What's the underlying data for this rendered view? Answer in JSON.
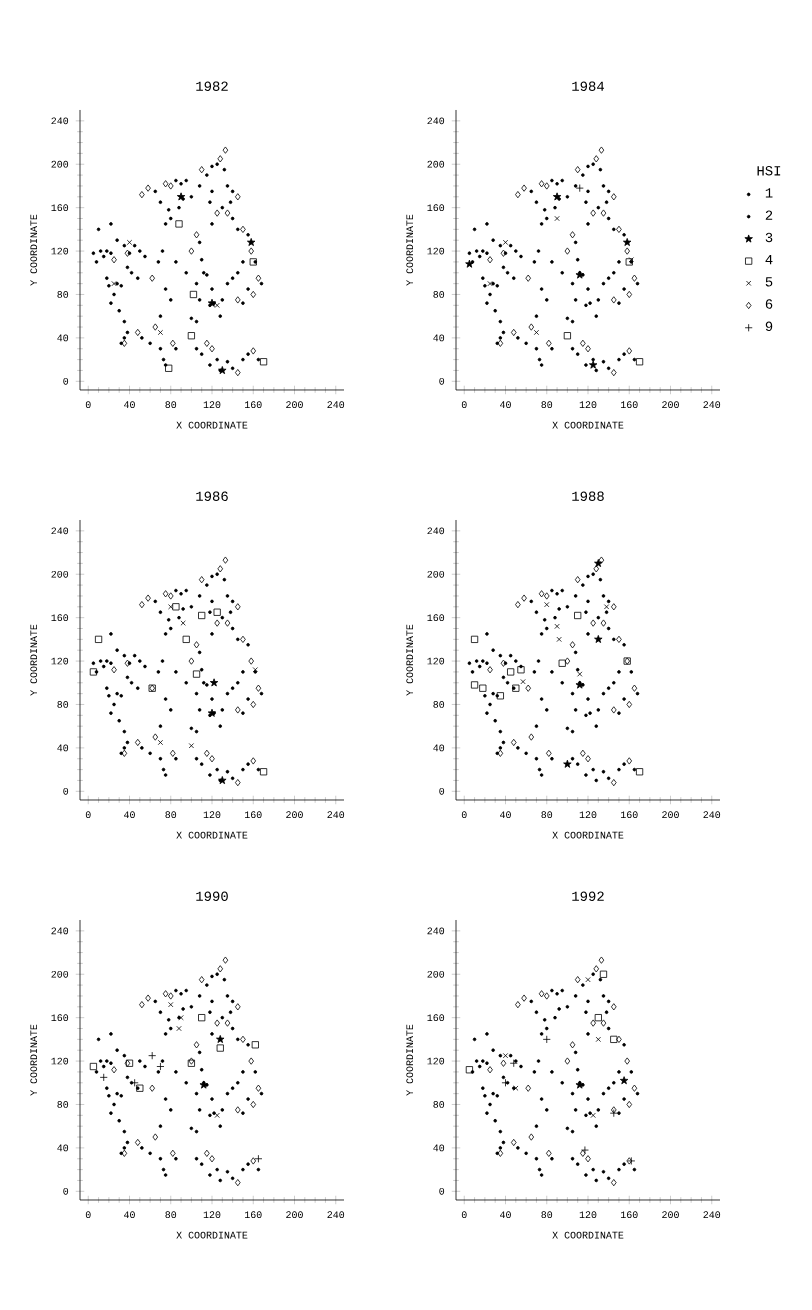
{
  "chart_data": [
    {
      "type": "scatter",
      "title": "1982",
      "xlabel": "X COORDINATE",
      "ylabel": "Y COORDINATE",
      "xlim": [
        -8,
        248
      ],
      "ylim": [
        -8,
        250
      ],
      "xticks": [
        0,
        40,
        80,
        120,
        160,
        200,
        240
      ],
      "yticks": [
        0,
        40,
        80,
        120,
        160,
        200,
        240
      ],
      "series": [
        {
          "color": "#000000",
          "marker": "circle",
          "x": [
            5,
            8,
            12,
            15,
            18,
            22,
            28,
            35,
            40,
            42,
            38,
            18,
            20,
            25,
            22,
            38,
            32,
            35,
            28,
            32,
            45,
            50,
            55,
            48,
            60,
            70,
            75,
            73,
            85,
            75,
            80,
            68,
            72,
            85,
            65,
            70,
            90,
            95,
            78,
            80,
            75,
            88,
            92,
            100,
            108,
            110,
            112,
            115,
            105,
            100,
            105,
            118,
            122,
            128,
            130,
            120,
            108,
            115,
            120,
            125,
            132,
            135,
            130,
            140,
            120,
            138,
            120,
            155,
            162,
            155,
            145,
            150,
            140,
            135,
            150,
            110,
            125,
            135,
            140,
            150,
            165,
            118,
            128
          ],
          "values": [
            118,
            110,
            120,
            115,
            120,
            118,
            130,
            125,
            118,
            100,
            105,
            95,
            88,
            80,
            72,
            45,
            35,
            40,
            90,
            88,
            125,
            120,
            115,
            95,
            35,
            30,
            15,
            20,
            30,
            85,
            75,
            110,
            120,
            110,
            175,
            165,
            182,
            185,
            158,
            150,
            145,
            160,
            168,
            170,
            128,
            112,
            100,
            98,
            90,
            58,
            55,
            70,
            72,
            60,
            75,
            85,
            180,
            190,
            198,
            200,
            195,
            180,
            160,
            150,
            145,
            165,
            175,
            135,
            110,
            85,
            100,
            110,
            95,
            90,
            72,
            25,
            20,
            18,
            12,
            20,
            20,
            15,
            10
          ]
        },
        {
          "color": "#000000",
          "marker": "circle",
          "x": [
            10,
            22,
            30,
            52,
            70,
            85,
            95,
            108,
            140,
            145,
            168,
            105,
            155,
            118,
            35
          ],
          "values": [
            140,
            145,
            65,
            40,
            60,
            185,
            100,
            75,
            175,
            140,
            90,
            30,
            25,
            165,
            55
          ]
        },
        {
          "color": "#000000",
          "marker": "star",
          "x": [
            90,
            158,
            130,
            120
          ],
          "values": [
            170,
            128,
            10,
            72
          ]
        },
        {
          "color": "#000000",
          "marker": "square",
          "x": [
            100,
            78,
            170,
            102,
            160,
            88
          ],
          "values": [
            42,
            12,
            18,
            80,
            110,
            145
          ]
        },
        {
          "color": "#000000",
          "marker": "cross",
          "x": [
            40,
            25,
            70,
            125
          ],
          "values": [
            128,
            90,
            45,
            70
          ]
        },
        {
          "color": "#000000",
          "marker": "diamond",
          "x": [
            52,
            58,
            75,
            80,
            35,
            48,
            65,
            82,
            100,
            110,
            128,
            133,
            145,
            135,
            150,
            158,
            165,
            160,
            145,
            115,
            120,
            145,
            160,
            25,
            38,
            62,
            105,
            125
          ],
          "values": [
            172,
            178,
            182,
            180,
            35,
            45,
            50,
            35,
            120,
            195,
            205,
            213,
            170,
            155,
            140,
            120,
            95,
            80,
            75,
            35,
            30,
            8,
            28,
            112,
            118,
            95,
            135,
            155
          ]
        }
      ]
    },
    {
      "type": "scatter",
      "title": "1984",
      "xlabel": "X COORDINATE",
      "ylabel": "Y COORDINATE",
      "xlim": [
        -8,
        248
      ],
      "ylim": [
        -8,
        250
      ],
      "xticks": [
        0,
        40,
        80,
        120,
        160,
        200,
        240
      ],
      "yticks": [
        0,
        40,
        80,
        120,
        160,
        200,
        240
      ],
      "legend": "right",
      "legend_title": "HSI",
      "series": [
        {
          "name": "1",
          "color": "#000000",
          "marker": "circle",
          "x": [
            5,
            8,
            12,
            15,
            18,
            22,
            28,
            35,
            40,
            42,
            38,
            18,
            20,
            25,
            22,
            38,
            32,
            35,
            28,
            32,
            45,
            50,
            55,
            48,
            60,
            70,
            75,
            73,
            85,
            75,
            80,
            68,
            72,
            85,
            65,
            70,
            90,
            95,
            78,
            80,
            75,
            88,
            92,
            100,
            108,
            110,
            112,
            115,
            105,
            100,
            105,
            118,
            122,
            128,
            130,
            120,
            108,
            115,
            120,
            125,
            132,
            135,
            130,
            140,
            120,
            138,
            120,
            155,
            162,
            155,
            145,
            150,
            140,
            135,
            150,
            110,
            125,
            135,
            140,
            150,
            165,
            118,
            128
          ],
          "values": [
            118,
            110,
            120,
            115,
            120,
            118,
            130,
            125,
            118,
            100,
            105,
            95,
            88,
            80,
            72,
            45,
            35,
            40,
            90,
            88,
            125,
            120,
            115,
            95,
            35,
            30,
            15,
            20,
            30,
            85,
            75,
            110,
            120,
            110,
            175,
            165,
            182,
            185,
            158,
            150,
            145,
            160,
            168,
            170,
            128,
            112,
            100,
            98,
            90,
            58,
            55,
            70,
            72,
            60,
            75,
            85,
            180,
            190,
            198,
            200,
            195,
            180,
            160,
            150,
            145,
            165,
            175,
            135,
            110,
            85,
            100,
            110,
            95,
            90,
            72,
            25,
            20,
            18,
            12,
            20,
            20,
            15,
            10
          ]
        },
        {
          "name": "2",
          "color": "#000000",
          "marker": "circle",
          "x": [
            10,
            22,
            30,
            52,
            70,
            85,
            95,
            108,
            140,
            145,
            168,
            105,
            155,
            118,
            35
          ],
          "values": [
            140,
            145,
            65,
            40,
            60,
            185,
            100,
            75,
            175,
            140,
            90,
            30,
            25,
            165,
            55
          ]
        },
        {
          "name": "3",
          "color": "#000000",
          "marker": "star",
          "x": [
            5,
            90,
            158,
            125,
            112
          ],
          "values": [
            108,
            170,
            128,
            15,
            98
          ]
        },
        {
          "name": "4",
          "color": "#000000",
          "marker": "square",
          "x": [
            100,
            170,
            160
          ],
          "values": [
            42,
            18,
            110
          ]
        },
        {
          "name": "5",
          "color": "#000000",
          "marker": "cross",
          "x": [
            40,
            25,
            70,
            90,
            162
          ],
          "values": [
            128,
            90,
            45,
            150,
            112
          ]
        },
        {
          "name": "6",
          "color": "#000000",
          "marker": "diamond",
          "x": [
            52,
            58,
            75,
            80,
            35,
            48,
            65,
            82,
            100,
            110,
            128,
            133,
            145,
            135,
            150,
            158,
            165,
            160,
            145,
            115,
            120,
            145,
            160,
            25,
            38,
            62,
            105,
            125
          ],
          "values": [
            172,
            178,
            182,
            180,
            35,
            45,
            50,
            35,
            120,
            195,
            205,
            213,
            170,
            155,
            140,
            120,
            95,
            80,
            75,
            35,
            30,
            8,
            28,
            112,
            118,
            95,
            135,
            155
          ]
        },
        {
          "name": "9",
          "color": "#000000",
          "marker": "plus",
          "x": [
            112
          ],
          "values": [
            178
          ]
        }
      ]
    },
    {
      "type": "scatter",
      "title": "1986",
      "xlabel": "X COORDINATE",
      "ylabel": "Y COORDINATE",
      "xlim": [
        -8,
        248
      ],
      "ylim": [
        -8,
        250
      ],
      "xticks": [
        0,
        40,
        80,
        120,
        160,
        200,
        240
      ],
      "yticks": [
        0,
        40,
        80,
        120,
        160,
        200,
        240
      ],
      "series": [
        {
          "color": "#000000",
          "marker": "circle",
          "x": [
            5,
            8,
            12,
            15,
            18,
            22,
            28,
            35,
            40,
            42,
            38,
            18,
            20,
            25,
            22,
            38,
            32,
            35,
            28,
            32,
            45,
            50,
            55,
            48,
            60,
            70,
            75,
            73,
            85,
            75,
            80,
            68,
            72,
            85,
            65,
            70,
            90,
            95,
            78,
            80,
            75,
            88,
            92,
            100,
            108,
            110,
            112,
            115,
            105,
            100,
            105,
            118,
            122,
            128,
            130,
            120,
            108,
            115,
            120,
            125,
            132,
            135,
            130,
            140,
            120,
            138,
            120,
            155,
            162,
            155,
            145,
            150,
            140,
            135,
            150,
            110,
            125,
            135,
            140,
            150,
            165,
            118,
            128
          ],
          "values": [
            118,
            110,
            120,
            115,
            120,
            118,
            130,
            125,
            118,
            100,
            105,
            95,
            88,
            80,
            72,
            45,
            35,
            40,
            90,
            88,
            125,
            120,
            115,
            95,
            35,
            30,
            15,
            20,
            30,
            85,
            75,
            110,
            120,
            110,
            175,
            165,
            182,
            185,
            158,
            150,
            145,
            160,
            168,
            170,
            128,
            112,
            100,
            98,
            90,
            58,
            55,
            70,
            72,
            60,
            75,
            85,
            180,
            190,
            198,
            200,
            195,
            180,
            160,
            150,
            145,
            165,
            175,
            135,
            110,
            85,
            100,
            110,
            95,
            90,
            72,
            25,
            20,
            18,
            12,
            20,
            20,
            15,
            10
          ]
        },
        {
          "color": "#000000",
          "marker": "circle",
          "x": [
            22,
            30,
            52,
            70,
            85,
            95,
            108,
            140,
            145,
            168,
            105,
            155,
            118,
            35
          ],
          "values": [
            145,
            65,
            40,
            60,
            185,
            100,
            75,
            175,
            140,
            90,
            30,
            25,
            165,
            55
          ]
        },
        {
          "color": "#000000",
          "marker": "star",
          "x": [
            130,
            120,
            122
          ],
          "values": [
            10,
            72,
            100
          ]
        },
        {
          "color": "#000000",
          "marker": "square",
          "x": [
            10,
            85,
            62,
            105,
            110,
            125,
            95,
            170,
            5
          ],
          "values": [
            140,
            170,
            95,
            108,
            162,
            165,
            140,
            18,
            110
          ]
        },
        {
          "color": "#000000",
          "marker": "cross",
          "x": [
            100,
            80,
            92,
            70,
            162
          ],
          "values": [
            42,
            170,
            155,
            45,
            112
          ]
        },
        {
          "color": "#000000",
          "marker": "diamond",
          "x": [
            52,
            58,
            75,
            80,
            35,
            48,
            65,
            82,
            100,
            110,
            128,
            133,
            145,
            135,
            150,
            158,
            165,
            160,
            145,
            115,
            120,
            145,
            160,
            25,
            38,
            62,
            105,
            125
          ],
          "values": [
            172,
            178,
            182,
            180,
            35,
            45,
            50,
            35,
            120,
            195,
            205,
            213,
            170,
            155,
            140,
            120,
            95,
            80,
            75,
            35,
            30,
            8,
            28,
            112,
            118,
            95,
            135,
            155
          ]
        }
      ]
    },
    {
      "type": "scatter",
      "title": "1988",
      "xlabel": "X COORDINATE",
      "ylabel": "Y COORDINATE",
      "xlim": [
        -8,
        248
      ],
      "ylim": [
        -8,
        250
      ],
      "xticks": [
        0,
        40,
        80,
        120,
        160,
        200,
        240
      ],
      "yticks": [
        0,
        40,
        80,
        120,
        160,
        200,
        240
      ],
      "series": [
        {
          "color": "#000000",
          "marker": "circle",
          "x": [
            5,
            8,
            12,
            15,
            18,
            22,
            28,
            35,
            40,
            42,
            38,
            20,
            25,
            22,
            38,
            32,
            35,
            28,
            32,
            45,
            50,
            55,
            48,
            60,
            70,
            75,
            73,
            85,
            75,
            80,
            68,
            72,
            85,
            65,
            70,
            90,
            95,
            78,
            80,
            75,
            88,
            92,
            100,
            108,
            110,
            112,
            115,
            105,
            100,
            105,
            118,
            122,
            128,
            130,
            120,
            108,
            115,
            120,
            125,
            132,
            135,
            130,
            140,
            120,
            138,
            120,
            155,
            162,
            155,
            145,
            150,
            140,
            135,
            150,
            110,
            125,
            135,
            140,
            150,
            165,
            118,
            128
          ],
          "values": [
            118,
            110,
            120,
            115,
            120,
            118,
            130,
            125,
            118,
            100,
            105,
            88,
            80,
            72,
            45,
            35,
            40,
            90,
            88,
            125,
            120,
            115,
            95,
            35,
            30,
            15,
            20,
            30,
            85,
            75,
            110,
            120,
            110,
            175,
            165,
            182,
            185,
            158,
            150,
            145,
            160,
            168,
            170,
            128,
            112,
            100,
            98,
            90,
            58,
            55,
            70,
            72,
            60,
            75,
            85,
            180,
            190,
            198,
            200,
            195,
            180,
            160,
            150,
            145,
            165,
            175,
            135,
            110,
            85,
            100,
            110,
            95,
            90,
            72,
            25,
            20,
            18,
            12,
            20,
            20,
            15,
            10
          ]
        },
        {
          "color": "#000000",
          "marker": "circle",
          "x": [
            22,
            30,
            52,
            70,
            85,
            95,
            108,
            140,
            145,
            168,
            105,
            155,
            118,
            35
          ],
          "values": [
            145,
            65,
            40,
            60,
            185,
            100,
            75,
            175,
            140,
            90,
            30,
            25,
            165,
            55
          ]
        },
        {
          "color": "#000000",
          "marker": "star",
          "x": [
            130,
            112,
            130,
            100
          ],
          "values": [
            210,
            98,
            140,
            25
          ]
        },
        {
          "color": "#000000",
          "marker": "square",
          "x": [
            10,
            10,
            18,
            50,
            55,
            45,
            110,
            95,
            158,
            170,
            35
          ],
          "values": [
            140,
            98,
            95,
            95,
            112,
            110,
            162,
            118,
            120,
            18,
            88
          ]
        },
        {
          "color": "#000000",
          "marker": "cross",
          "x": [
            57,
            80,
            90,
            92,
            112,
            138
          ],
          "values": [
            101,
            172,
            152,
            140,
            108,
            170
          ]
        },
        {
          "color": "#000000",
          "marker": "diamond",
          "x": [
            52,
            58,
            75,
            80,
            35,
            48,
            65,
            82,
            100,
            110,
            128,
            133,
            145,
            135,
            150,
            158,
            165,
            160,
            145,
            115,
            120,
            145,
            160,
            25,
            38,
            62,
            105,
            125
          ],
          "values": [
            172,
            178,
            182,
            180,
            35,
            45,
            50,
            35,
            120,
            195,
            205,
            213,
            170,
            155,
            140,
            120,
            95,
            80,
            75,
            35,
            30,
            8,
            28,
            112,
            118,
            95,
            135,
            155
          ]
        }
      ]
    },
    {
      "type": "scatter",
      "title": "1990",
      "xlabel": "X COORDINATE",
      "ylabel": "Y COORDINATE",
      "xlim": [
        -8,
        248
      ],
      "ylim": [
        -8,
        250
      ],
      "xticks": [
        0,
        40,
        80,
        120,
        160,
        200,
        240
      ],
      "yticks": [
        0,
        40,
        80,
        120,
        160,
        200,
        240
      ],
      "series": [
        {
          "color": "#000000",
          "marker": "circle",
          "x": [
            8,
            12,
            15,
            18,
            22,
            28,
            35,
            42,
            38,
            18,
            20,
            25,
            22,
            38,
            32,
            35,
            28,
            32,
            50,
            55,
            48,
            60,
            70,
            75,
            73,
            85,
            75,
            80,
            68,
            72,
            85,
            65,
            70,
            90,
            95,
            78,
            80,
            75,
            88,
            92,
            100,
            108,
            110,
            112,
            115,
            105,
            100,
            105,
            118,
            122,
            128,
            130,
            120,
            108,
            115,
            120,
            125,
            132,
            135,
            130,
            140,
            120,
            138,
            120,
            155,
            162,
            155,
            145,
            150,
            140,
            135,
            150,
            110,
            125,
            135,
            140,
            150,
            165,
            118,
            128
          ],
          "values": [
            110,
            120,
            115,
            120,
            118,
            130,
            125,
            100,
            105,
            95,
            88,
            80,
            72,
            45,
            35,
            40,
            90,
            88,
            120,
            115,
            95,
            35,
            30,
            15,
            20,
            30,
            85,
            75,
            110,
            120,
            110,
            175,
            165,
            182,
            185,
            158,
            150,
            145,
            160,
            168,
            170,
            128,
            112,
            100,
            98,
            90,
            58,
            55,
            70,
            72,
            60,
            75,
            85,
            180,
            190,
            198,
            200,
            195,
            180,
            160,
            150,
            145,
            165,
            175,
            135,
            110,
            85,
            100,
            110,
            95,
            90,
            72,
            25,
            20,
            18,
            12,
            20,
            20,
            15,
            10
          ]
        },
        {
          "color": "#000000",
          "marker": "circle",
          "x": [
            10,
            22,
            30,
            52,
            70,
            85,
            95,
            108,
            140,
            145,
            168,
            105,
            155,
            118,
            35
          ],
          "values": [
            140,
            145,
            65,
            40,
            60,
            185,
            100,
            75,
            175,
            140,
            90,
            30,
            25,
            165,
            55
          ]
        },
        {
          "color": "#000000",
          "marker": "star",
          "x": [
            112,
            128
          ],
          "values": [
            98,
            140
          ]
        },
        {
          "color": "#000000",
          "marker": "square",
          "x": [
            5,
            40,
            50,
            100,
            110,
            128,
            162
          ],
          "values": [
            115,
            118,
            95,
            118,
            160,
            132,
            135
          ]
        },
        {
          "color": "#000000",
          "marker": "cross",
          "x": [
            80,
            90,
            88,
            125
          ],
          "values": [
            172,
            160,
            150,
            70
          ]
        },
        {
          "color": "#000000",
          "marker": "diamond",
          "x": [
            52,
            58,
            75,
            80,
            35,
            48,
            65,
            82,
            100,
            110,
            128,
            133,
            145,
            135,
            150,
            158,
            165,
            160,
            145,
            115,
            120,
            145,
            160,
            25,
            38,
            62,
            105,
            125
          ],
          "values": [
            172,
            178,
            182,
            180,
            35,
            45,
            50,
            35,
            120,
            195,
            205,
            213,
            170,
            155,
            140,
            120,
            95,
            80,
            75,
            35,
            30,
            8,
            28,
            112,
            118,
            95,
            135,
            155
          ]
        },
        {
          "color": "#000000",
          "marker": "plus",
          "x": [
            62,
            70,
            165,
            15,
            45
          ],
          "values": [
            125,
            115,
            30,
            105,
            100
          ]
        }
      ]
    },
    {
      "type": "scatter",
      "title": "1992",
      "xlabel": "X COORDINATE",
      "ylabel": "Y COORDINATE",
      "xlim": [
        -8,
        248
      ],
      "ylim": [
        -8,
        250
      ],
      "xticks": [
        0,
        40,
        80,
        120,
        160,
        200,
        240
      ],
      "yticks": [
        0,
        40,
        80,
        120,
        160,
        200,
        240
      ],
      "series": [
        {
          "color": "#000000",
          "marker": "circle",
          "x": [
            8,
            12,
            15,
            18,
            22,
            28,
            35,
            42,
            38,
            18,
            20,
            25,
            22,
            38,
            32,
            35,
            28,
            32,
            45,
            50,
            55,
            48,
            60,
            70,
            75,
            73,
            85,
            75,
            80,
            68,
            72,
            85,
            65,
            70,
            90,
            95,
            78,
            80,
            75,
            88,
            92,
            100,
            108,
            110,
            112,
            115,
            105,
            100,
            105,
            118,
            122,
            128,
            130,
            120,
            108,
            115,
            125,
            132,
            135,
            140,
            120,
            138,
            120,
            155,
            162,
            155,
            145,
            150,
            140,
            135,
            150,
            110,
            125,
            135,
            140,
            150,
            165,
            118,
            128
          ],
          "values": [
            110,
            120,
            115,
            120,
            118,
            130,
            125,
            100,
            105,
            95,
            88,
            80,
            72,
            45,
            35,
            40,
            90,
            88,
            125,
            120,
            115,
            95,
            35,
            30,
            15,
            20,
            30,
            85,
            75,
            110,
            120,
            110,
            175,
            165,
            182,
            185,
            158,
            150,
            145,
            160,
            168,
            170,
            128,
            112,
            100,
            98,
            90,
            58,
            55,
            70,
            72,
            60,
            75,
            85,
            180,
            190,
            200,
            195,
            180,
            150,
            145,
            165,
            175,
            135,
            110,
            85,
            100,
            110,
            95,
            90,
            72,
            25,
            20,
            18,
            12,
            20,
            20,
            15,
            10
          ]
        },
        {
          "color": "#000000",
          "marker": "circle",
          "x": [
            10,
            22,
            30,
            52,
            70,
            85,
            95,
            108,
            140,
            168,
            105,
            155,
            118,
            35
          ],
          "values": [
            140,
            145,
            65,
            40,
            60,
            185,
            100,
            75,
            175,
            90,
            30,
            25,
            165,
            55
          ]
        },
        {
          "color": "#000000",
          "marker": "star",
          "x": [
            155,
            112
          ],
          "values": [
            102,
            98
          ]
        },
        {
          "color": "#000000",
          "marker": "square",
          "x": [
            5,
            135,
            145,
            130
          ],
          "values": [
            112,
            200,
            140,
            160
          ]
        },
        {
          "color": "#000000",
          "marker": "cross",
          "x": [
            50,
            120,
            130,
            125,
            40
          ],
          "values": [
            95,
            195,
            140,
            70,
            125
          ]
        },
        {
          "color": "#000000",
          "marker": "diamond",
          "x": [
            52,
            58,
            75,
            80,
            35,
            48,
            65,
            82,
            100,
            110,
            128,
            133,
            145,
            135,
            150,
            158,
            165,
            160,
            145,
            115,
            120,
            145,
            160,
            25,
            38,
            62,
            105,
            125
          ],
          "values": [
            172,
            178,
            182,
            180,
            35,
            45,
            50,
            35,
            120,
            195,
            205,
            213,
            170,
            155,
            140,
            120,
            95,
            80,
            75,
            35,
            30,
            8,
            28,
            112,
            118,
            95,
            135,
            155
          ]
        },
        {
          "color": "#000000",
          "marker": "plus",
          "x": [
            40,
            117,
            162,
            48,
            80,
            145
          ],
          "values": [
            100,
            38,
            28,
            118,
            140,
            72
          ]
        }
      ]
    }
  ]
}
